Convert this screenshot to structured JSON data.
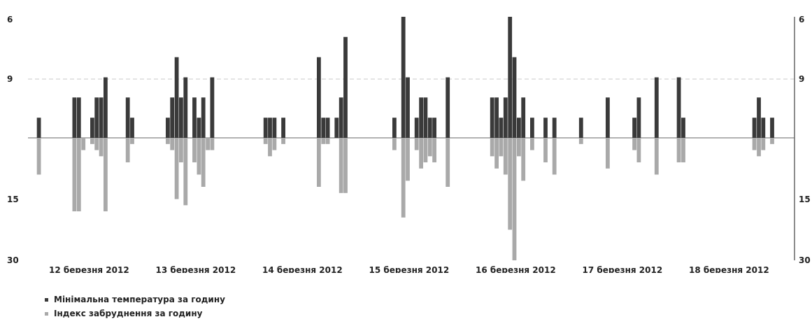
{
  "colors": {
    "series1": "#3a3a3a",
    "series2": "#a9a9a9",
    "axis": "#666666",
    "grid": "#c8c8c8"
  },
  "chart_data": {
    "type": "bar",
    "title": "",
    "xlabel": "",
    "ylabel": "",
    "left_ticks": [
      "6",
      "9",
      "15",
      "30"
    ],
    "right_ticks": [
      "6",
      "9",
      "15",
      "30"
    ],
    "grid": "dashed line at 9",
    "legend_position": "bottom-left",
    "categories": [
      "12 березня 2012",
      "13 березня 2012",
      "14 березня 2012",
      "15 березня 2012",
      "16 березня 2012",
      "17 березня 2012",
      "18 березня 2012"
    ],
    "upper_range": [
      0,
      6
    ],
    "lower_range": [
      0,
      6
    ],
    "bars_per_day": 24,
    "series": [
      {
        "name": "Мінімальна температура за годину",
        "values": [
          [
            0,
            0,
            1,
            0,
            0,
            0,
            0,
            0,
            0,
            0,
            2,
            2,
            0,
            0,
            1,
            2,
            2,
            3,
            0,
            0,
            0,
            0,
            2,
            1
          ],
          [
            0,
            0,
            0,
            0,
            0,
            0,
            0,
            1,
            2,
            4,
            2,
            3,
            0,
            2,
            1,
            2,
            0,
            3,
            0,
            0,
            0,
            0,
            0,
            0
          ],
          [
            0,
            0,
            0,
            0,
            0,
            1,
            1,
            1,
            0,
            1,
            0,
            0,
            0,
            0,
            0,
            0,
            0,
            4,
            1,
            1,
            0,
            1,
            2,
            5
          ],
          [
            0,
            0,
            0,
            0,
            0,
            0,
            0,
            0,
            0,
            0,
            1,
            0,
            6,
            3,
            0,
            1,
            2,
            2,
            1,
            1,
            0,
            0,
            3,
            0
          ],
          [
            0,
            0,
            0,
            0,
            0,
            0,
            0,
            0,
            2,
            2,
            1,
            2,
            6,
            4,
            1,
            2,
            0,
            1,
            0,
            0,
            1,
            0,
            1,
            0
          ],
          [
            0,
            0,
            0,
            0,
            1,
            0,
            0,
            0,
            0,
            0,
            2,
            0,
            0,
            0,
            0,
            0,
            1,
            2,
            0,
            0,
            0,
            3,
            0,
            0
          ],
          [
            0,
            0,
            3,
            1,
            0,
            0,
            0,
            0,
            0,
            0,
            0,
            0,
            0,
            0,
            0,
            0,
            0,
            0,
            0,
            1,
            2,
            1,
            0,
            1
          ]
        ]
      },
      {
        "name": "Індекс забруднення за годину",
        "values": [
          [
            0,
            0,
            3,
            0,
            0,
            0,
            0,
            0,
            0,
            0,
            6,
            6,
            1,
            0,
            0.5,
            1,
            1.5,
            6,
            0,
            0,
            0,
            0,
            2,
            0.5
          ],
          [
            0,
            0,
            0,
            0,
            0,
            0,
            0,
            0.5,
            1,
            5,
            2,
            5.5,
            0,
            2,
            3,
            4,
            1,
            1,
            0,
            0,
            0,
            0,
            0,
            0
          ],
          [
            0,
            0,
            0,
            0,
            0,
            0.5,
            1.5,
            1,
            0,
            0.5,
            0,
            0,
            0,
            0,
            0,
            0,
            0,
            4,
            0.5,
            0.5,
            0,
            0,
            4.5,
            4.5
          ],
          [
            0,
            0,
            0,
            0,
            0,
            0,
            0,
            0,
            0,
            0,
            1,
            0,
            6.5,
            3.5,
            0,
            1,
            2.5,
            2,
            1.5,
            2,
            0,
            0,
            4,
            0
          ],
          [
            0,
            0,
            0,
            0,
            0,
            0,
            0,
            0,
            1.5,
            2.5,
            1.5,
            3,
            7.5,
            10,
            1.5,
            3.5,
            0,
            1,
            0,
            0,
            2,
            0,
            3,
            0
          ],
          [
            0,
            0,
            0,
            0,
            0.5,
            0,
            0,
            0,
            0,
            0,
            2.5,
            0,
            0,
            0,
            0,
            0,
            1,
            2,
            0,
            0,
            0,
            3,
            0,
            0
          ],
          [
            0,
            0,
            2,
            2,
            0,
            0,
            0,
            0,
            0,
            0,
            0,
            0,
            0,
            0,
            0,
            0,
            0,
            0,
            0,
            1,
            1.5,
            1,
            0,
            0.5
          ]
        ]
      }
    ]
  }
}
